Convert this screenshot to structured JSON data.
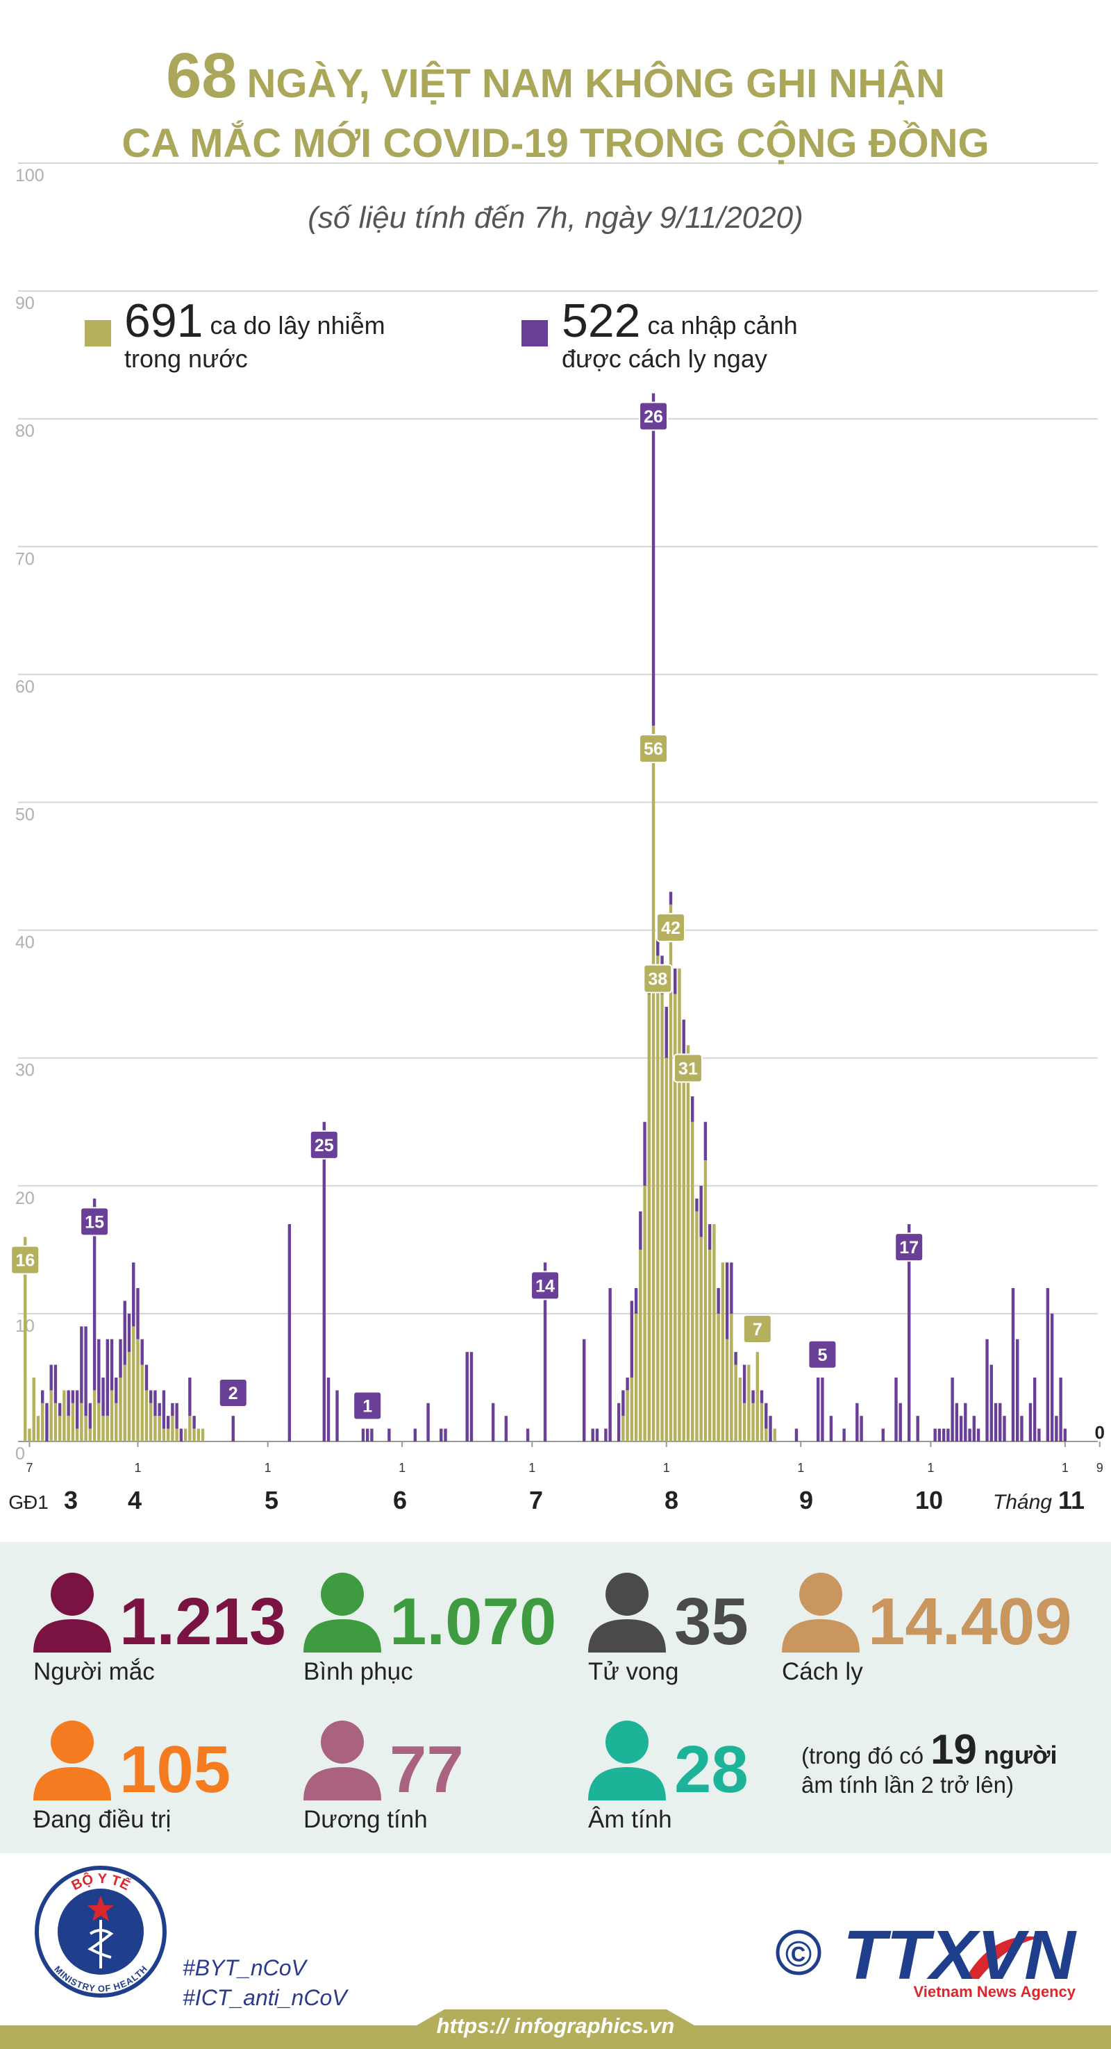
{
  "chart_data": {
    "type": "bar",
    "stacked": true,
    "title_number": "68",
    "title_line1": "NGÀY, VIỆT NAM KHÔNG GHI NHẬN",
    "title_line2": "CA MẮC MỚI COVID-19 TRONG CỘNG ĐỒNG",
    "subtitle": "(số liệu tính đến 7h, ngày 9/11/2020)",
    "ylim": [
      0,
      100
    ],
    "yticks": [
      0,
      10,
      20,
      30,
      40,
      50,
      60,
      70,
      80,
      90,
      100
    ],
    "grid": true,
    "xlim": [
      -2,
      248
    ],
    "xticks": [
      {
        "value": 0,
        "label": "7"
      },
      {
        "value": 25,
        "label": "1"
      },
      {
        "value": 55,
        "label": "1"
      },
      {
        "value": 86,
        "label": "1"
      },
      {
        "value": 116,
        "label": "1"
      },
      {
        "value": 147,
        "label": "1"
      },
      {
        "value": 178,
        "label": "1"
      },
      {
        "value": 208,
        "label": "1"
      },
      {
        "value": 239,
        "label": "1"
      },
      {
        "value": 247,
        "label": "9"
      }
    ],
    "month_labels": [
      "GĐ1",
      "3",
      "4",
      "5",
      "6",
      "7",
      "8",
      "9",
      "10",
      "11"
    ],
    "month_prefix": "Tháng",
    "x": [
      -1,
      0,
      1,
      2,
      3,
      4,
      5,
      6,
      7,
      8,
      9,
      10,
      11,
      12,
      13,
      14,
      15,
      16,
      17,
      18,
      19,
      20,
      21,
      22,
      23,
      24,
      25,
      26,
      27,
      28,
      29,
      30,
      31,
      32,
      33,
      34,
      35,
      36,
      37,
      38,
      39,
      40,
      47,
      60,
      68,
      69,
      71,
      77,
      78,
      79,
      83,
      89,
      92,
      95,
      96,
      101,
      102,
      107,
      110,
      115,
      119,
      128,
      130,
      131,
      133,
      134,
      136,
      137,
      138,
      139,
      140,
      141,
      142,
      143,
      144,
      145,
      146,
      147,
      148,
      149,
      150,
      151,
      152,
      153,
      154,
      155,
      156,
      157,
      158,
      159,
      160,
      161,
      162,
      163,
      164,
      165,
      166,
      167,
      168,
      169,
      170,
      171,
      172,
      177,
      182,
      183,
      185,
      188,
      191,
      192,
      197,
      200,
      201,
      203,
      205,
      209,
      210,
      211,
      212,
      213,
      214,
      215,
      216,
      217,
      218,
      219,
      221,
      222,
      223,
      224,
      225,
      227,
      228,
      229,
      231,
      232,
      233,
      235,
      236,
      237,
      238,
      239,
      247
    ],
    "series": [
      {
        "name": "ca do lây nhiễm trong nước",
        "total": 691,
        "color": "#b4b05e",
        "values": [
          16,
          1,
          5,
          2,
          3,
          0,
          4,
          3,
          2,
          4,
          2,
          3,
          1,
          3,
          2,
          1,
          4,
          3,
          2,
          2,
          4,
          3,
          5,
          6,
          7,
          9,
          8,
          6,
          4,
          3,
          2,
          2,
          1,
          1,
          2,
          1,
          0,
          1,
          2,
          1,
          1,
          1,
          0,
          0,
          0,
          0,
          0,
          0,
          0,
          0,
          0,
          0,
          0,
          0,
          0,
          0,
          0,
          0,
          0,
          0,
          0,
          0,
          0,
          0,
          0,
          0,
          0,
          2,
          4,
          5,
          10,
          15,
          20,
          35,
          56,
          38,
          35,
          30,
          42,
          35,
          37,
          30,
          31,
          25,
          18,
          16,
          22,
          15,
          17,
          10,
          14,
          8,
          10,
          6,
          5,
          3,
          6,
          3,
          7,
          3,
          1,
          0,
          1,
          0,
          0,
          0,
          0,
          0,
          0,
          0,
          0,
          0,
          0,
          0,
          0,
          0,
          0,
          0,
          0,
          0,
          0,
          0,
          0,
          0,
          0,
          0,
          0,
          0,
          0,
          0,
          0,
          0,
          0,
          0,
          0,
          0,
          0,
          0,
          0,
          0,
          0,
          0,
          0
        ],
        "value_labels": [
          "16",
          null,
          null,
          null,
          null,
          null,
          null,
          null,
          null,
          null,
          null,
          null,
          null,
          null,
          null,
          null,
          null,
          null,
          null,
          null,
          null,
          null,
          null,
          null,
          null,
          null,
          null,
          null,
          null,
          null,
          null,
          null,
          null,
          null,
          null,
          null,
          null,
          null,
          null,
          null,
          null,
          null,
          null,
          null,
          null,
          null,
          null,
          null,
          null,
          null,
          null,
          null,
          null,
          null,
          null,
          null,
          null,
          null,
          null,
          null,
          null,
          null,
          null,
          null,
          null,
          null,
          null,
          null,
          null,
          null,
          null,
          null,
          null,
          null,
          "56",
          "38",
          null,
          null,
          "42",
          null,
          null,
          null,
          "31",
          null,
          null,
          null,
          null,
          null,
          null,
          null,
          null,
          null,
          null,
          null,
          null,
          null,
          null,
          null,
          "7",
          null,
          null,
          null,
          null,
          null,
          null,
          null,
          null,
          null,
          null,
          null,
          null,
          null,
          null,
          null,
          null,
          null,
          null,
          null,
          null,
          null,
          null,
          null,
          null,
          null,
          null,
          null,
          null,
          null,
          null,
          null,
          null,
          null,
          null,
          null,
          null,
          null,
          null,
          null,
          null,
          null,
          null,
          null,
          "0"
        ]
      },
      {
        "name": "ca nhập cảnh được cách ly ngay",
        "total": 522,
        "color": "#6a3f98",
        "values": [
          0,
          0,
          0,
          0,
          1,
          3,
          2,
          3,
          1,
          0,
          2,
          1,
          3,
          6,
          7,
          2,
          15,
          5,
          3,
          6,
          4,
          2,
          3,
          5,
          3,
          5,
          4,
          2,
          2,
          1,
          2,
          1,
          3,
          1,
          1,
          2,
          1,
          0,
          3,
          1,
          0,
          0,
          2,
          17,
          25,
          5,
          4,
          1,
          1,
          1,
          1,
          1,
          3,
          1,
          1,
          7,
          7,
          3,
          2,
          1,
          14,
          8,
          1,
          1,
          1,
          12,
          3,
          2,
          1,
          6,
          2,
          3,
          5,
          2,
          26,
          2,
          3,
          4,
          1,
          2,
          0,
          3,
          0,
          2,
          1,
          4,
          3,
          2,
          0,
          2,
          0,
          6,
          4,
          1,
          0,
          3,
          0,
          1,
          0,
          1,
          2,
          2,
          0,
          1,
          5,
          5,
          2,
          1,
          3,
          2,
          1,
          5,
          3,
          17,
          2,
          1,
          1,
          1,
          1,
          5,
          3,
          2,
          3,
          1,
          2,
          1,
          8,
          6,
          3,
          3,
          2,
          12,
          8,
          2,
          3,
          5,
          1,
          12,
          10,
          2,
          5,
          1,
          0
        ],
        "value_labels": [
          null,
          null,
          null,
          null,
          null,
          null,
          null,
          null,
          null,
          null,
          null,
          null,
          null,
          null,
          null,
          null,
          "15",
          null,
          null,
          null,
          null,
          null,
          null,
          null,
          null,
          null,
          null,
          null,
          null,
          null,
          null,
          null,
          null,
          null,
          null,
          null,
          null,
          null,
          null,
          null,
          null,
          null,
          "2",
          null,
          "25",
          null,
          null,
          null,
          "1",
          null,
          null,
          null,
          null,
          null,
          null,
          null,
          null,
          null,
          null,
          null,
          "14",
          null,
          null,
          null,
          null,
          null,
          null,
          null,
          null,
          null,
          null,
          null,
          null,
          null,
          "26",
          null,
          null,
          null,
          null,
          null,
          null,
          null,
          null,
          null,
          null,
          null,
          null,
          null,
          null,
          null,
          null,
          null,
          null,
          null,
          null,
          null,
          null,
          null,
          null,
          null,
          null,
          null,
          null,
          null,
          null,
          "5",
          null,
          null,
          null,
          null,
          null,
          null,
          null,
          "17",
          null,
          null,
          null,
          null,
          null,
          null,
          null,
          null,
          null,
          null,
          null,
          null,
          null,
          null,
          null,
          null,
          null,
          null,
          null,
          null,
          null,
          null,
          null,
          null,
          null,
          null,
          null,
          null,
          null
        ]
      }
    ]
  },
  "stats": {
    "items": [
      {
        "value": "1.213",
        "label": "Người mắc",
        "color": "#7a1242"
      },
      {
        "value": "1.070",
        "label": "Bình phục",
        "color": "#3f9b3f"
      },
      {
        "value": "35",
        "label": "Tử vong",
        "color": "#4a4a4a"
      },
      {
        "value": "14.409",
        "label": "Cách ly",
        "color": "#c99660"
      },
      {
        "value": "105",
        "label": "Đang điều trị",
        "color": "#f47b20"
      },
      {
        "value": "77",
        "label": "Dương tính",
        "color": "#a9627f"
      },
      {
        "value": "28",
        "label": "Âm tính",
        "color": "#1db399"
      }
    ],
    "note": {
      "prefix": "(trong đó có",
      "number": "19",
      "suffix": "người",
      "line2": "âm tính lần 2 trở lên)"
    }
  },
  "footer": {
    "ministry_top": "BỘ Y TẾ",
    "ministry_bottom": "MINISTRY OF HEALTH",
    "hashtags": [
      "#BYT_nCoV",
      "#ICT_anti_nCoV"
    ],
    "copyright": "©",
    "agency": "TTXVN",
    "agency_sub": "Vietnam News Agency",
    "url": "https:// infographics.vn"
  }
}
